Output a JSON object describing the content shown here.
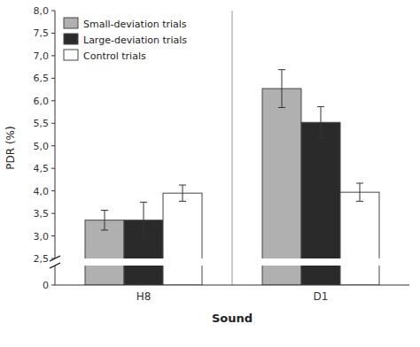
{
  "chart_data": {
    "type": "bar",
    "categories": [
      "H8",
      "D1"
    ],
    "series": [
      {
        "name": "Small-deviation trials",
        "color": "#b0b0b0",
        "values": [
          3.35,
          6.27
        ],
        "errors": [
          0.22,
          0.42
        ]
      },
      {
        "name": "Large-deviation trials",
        "color": "#2a2a2a",
        "values": [
          3.35,
          5.52
        ],
        "errors": [
          0.4,
          0.35
        ]
      },
      {
        "name": "Control trials",
        "color": "#ffffff",
        "values": [
          3.95,
          3.97
        ],
        "errors": [
          0.18,
          0.2
        ]
      }
    ],
    "xlabel": "Sound",
    "ylabel": "PDR (%)",
    "ylim": [
      0,
      8.0
    ],
    "yticks": [
      0,
      {
        "value": 2.5,
        "label": "2,5"
      },
      {
        "value": 3.0,
        "label": "3,0"
      },
      {
        "value": 3.5,
        "label": "3,5"
      },
      {
        "value": 4.0,
        "label": "4,0"
      },
      {
        "value": 4.5,
        "label": "4,5"
      },
      {
        "value": 5.0,
        "label": "5,0"
      },
      {
        "value": 5.5,
        "label": "5,5"
      },
      {
        "value": 6.0,
        "label": "6,0"
      },
      {
        "value": 6.5,
        "label": "6,5"
      },
      {
        "value": 7.0,
        "label": "7,0"
      },
      {
        "value": 7.5,
        "label": "7,5"
      },
      {
        "value": 8.0,
        "label": "8,0"
      }
    ],
    "grid": false,
    "legend": "upper left"
  }
}
